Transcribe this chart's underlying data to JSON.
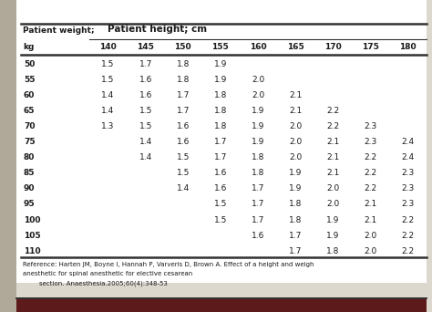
{
  "col_header_main": "Patient height; cm",
  "col_headers": [
    "140",
    "145",
    "150",
    "155",
    "160",
    "165",
    "170",
    "175",
    "180"
  ],
  "row_weights": [
    "50",
    "55",
    "60",
    "65",
    "70",
    "75",
    "80",
    "85",
    "90",
    "95",
    "100",
    "105",
    "110"
  ],
  "table_data": [
    [
      "1.5",
      "1.7",
      "1.8",
      "1.9",
      "",
      "",
      "",
      "",
      ""
    ],
    [
      "1.5",
      "1.6",
      "1.8",
      "1.9",
      "2.0",
      "",
      "",
      "",
      ""
    ],
    [
      "1.4",
      "1.6",
      "1.7",
      "1.8",
      "2.0",
      "2.1",
      "",
      "",
      ""
    ],
    [
      "1.4",
      "1.5",
      "1.7",
      "1.8",
      "1.9",
      "2.1",
      "2.2",
      "",
      ""
    ],
    [
      "1.3",
      "1.5",
      "1.6",
      "1.8",
      "1.9",
      "2.0",
      "2.2",
      "2.3",
      ""
    ],
    [
      "",
      "1.4",
      "1.6",
      "1.7",
      "1.9",
      "2.0",
      "2.1",
      "2.3",
      "2.4"
    ],
    [
      "",
      "1.4",
      "1.5",
      "1.7",
      "1.8",
      "2.0",
      "2.1",
      "2.2",
      "2.4"
    ],
    [
      "",
      "",
      "1.5",
      "1.6",
      "1.8",
      "1.9",
      "2.1",
      "2.2",
      "2.3"
    ],
    [
      "",
      "",
      "1.4",
      "1.6",
      "1.7",
      "1.9",
      "2.0",
      "2.2",
      "2.3"
    ],
    [
      "",
      "",
      "",
      "1.5",
      "1.7",
      "1.8",
      "2.0",
      "2.1",
      "2.3"
    ],
    [
      "",
      "",
      "",
      "1.5",
      "1.7",
      "1.8",
      "1.9",
      "2.1",
      "2.2"
    ],
    [
      "",
      "",
      "",
      "",
      "1.6",
      "1.7",
      "1.9",
      "2.0",
      "2.2"
    ],
    [
      "",
      "",
      "",
      "",
      "",
      "1.7",
      "1.8",
      "2.0",
      "2.2"
    ]
  ],
  "ref_line1": "Reference: Harten JM, Boyne I, Hannah P, Varveris D, Brown A. Effect of a height and weigh",
  "ref_line2": "anesthetic for spinal anesthetic for elective cesarean",
  "ref_line3": "        section. Anaesthesia.2005;60(4):348-53",
  "outer_bg": "#ddd8ce",
  "inner_bg": "#ffffff",
  "header_color": "#1a1a1a",
  "text_color": "#1a1a1a",
  "line_color": "#333333",
  "bottom_bar_color": "#5c1a1a",
  "border_left_color": "#888888"
}
